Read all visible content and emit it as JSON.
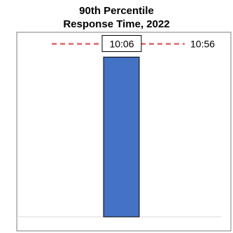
{
  "chart_data": {
    "type": "bar",
    "title": [
      "90th Percentile",
      "Response Time, 2022"
    ],
    "categories": [
      ""
    ],
    "values": [
      606
    ],
    "value_labels": [
      "10:06"
    ],
    "reference_line": {
      "value": 656,
      "label": "10:56"
    },
    "ylim": [
      0,
      700
    ],
    "xlabel": "",
    "ylabel": "",
    "legend": "none",
    "grid": false,
    "colors": {
      "bar": "#4472C4",
      "bar_edge": "#000000",
      "reference": "#E06666"
    }
  }
}
